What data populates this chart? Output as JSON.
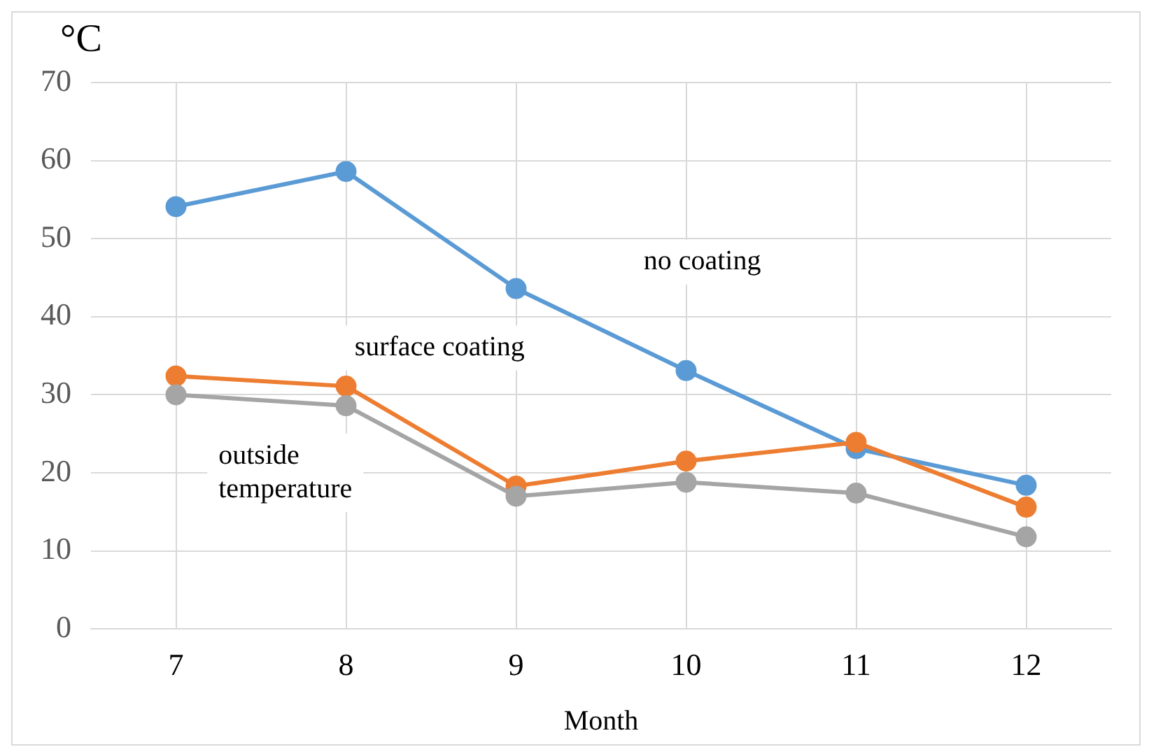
{
  "chart_data": {
    "type": "line",
    "ylabel": "°C",
    "xlabel": "Month",
    "categories": [
      "7",
      "8",
      "9",
      "10",
      "11",
      "12"
    ],
    "series": [
      {
        "name": "no coating",
        "color": "#5b9bd5",
        "values": [
          54.1,
          58.6,
          43.6,
          33.1,
          23.1,
          18.4
        ]
      },
      {
        "name": "surface coating",
        "color": "#ed7d31",
        "values": [
          32.4,
          31.1,
          18.3,
          21.5,
          23.9,
          15.6
        ]
      },
      {
        "name": "outside temperature",
        "color": "#a5a5a5",
        "values": [
          30.0,
          28.6,
          17.0,
          18.8,
          17.4,
          11.8
        ]
      }
    ],
    "ylim": [
      0,
      70
    ],
    "yticks": [
      0,
      10,
      20,
      30,
      40,
      50,
      60,
      70
    ],
    "grid": true,
    "legend": false,
    "marker": "circle",
    "line_style": "solid"
  }
}
